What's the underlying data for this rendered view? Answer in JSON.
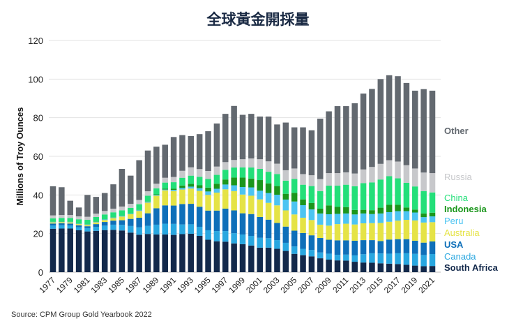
{
  "chart_data": {
    "type": "bar",
    "stacked": true,
    "title": "全球黃金開採量",
    "ylabel": "Millions of Troy Ounces",
    "xlabel": "",
    "ylim": [
      0,
      120
    ],
    "yticks": [
      0,
      20,
      40,
      60,
      80,
      100,
      120
    ],
    "grid": true,
    "legend": "right",
    "source": "Source: CPM Group Gold Yearbook 2022",
    "categories": [
      1977,
      1978,
      1979,
      1980,
      1981,
      1982,
      1983,
      1984,
      1985,
      1986,
      1987,
      1988,
      1989,
      1990,
      1991,
      1992,
      1993,
      1994,
      1995,
      1996,
      1997,
      1998,
      1999,
      2000,
      2001,
      2002,
      2003,
      2004,
      2005,
      2006,
      2007,
      2008,
      2009,
      2010,
      2011,
      2012,
      2013,
      2014,
      2015,
      2016,
      2017,
      2018,
      2019,
      2020,
      2021
    ],
    "xtick_labels": [
      "1977",
      "1979",
      "1981",
      "1983",
      "1985",
      "1987",
      "1989",
      "1991",
      "1993",
      "1995",
      "1997",
      "1999",
      "2001",
      "2003",
      "2005",
      "2007",
      "2009",
      "2011",
      "2013",
      "2015",
      "2017",
      "2019",
      "2021"
    ],
    "series": [
      {
        "name": "South Africa",
        "color": "#13294b",
        "values": [
          22.5,
          22.6,
          22.6,
          21.7,
          21.1,
          21.4,
          21.8,
          21.9,
          21.6,
          20.5,
          19.4,
          19.8,
          19.5,
          19.5,
          19.3,
          19.7,
          19.9,
          18.8,
          16.8,
          16.0,
          15.8,
          14.9,
          14.5,
          13.8,
          12.7,
          12.7,
          12.1,
          11.0,
          9.5,
          8.8,
          8.2,
          7.2,
          6.5,
          6.1,
          6.0,
          5.4,
          5.0,
          4.9,
          4.6,
          4.4,
          4.2,
          3.8,
          3.4,
          3.1,
          3.2
        ]
      },
      {
        "name": "Canada",
        "color": "#29a7e0",
        "values": [
          1.7,
          1.7,
          1.6,
          1.6,
          1.7,
          2.1,
          2.3,
          2.7,
          2.9,
          3.4,
          3.8,
          4.2,
          5.1,
          5.6,
          5.7,
          5.0,
          4.9,
          4.7,
          4.9,
          5.3,
          5.5,
          5.3,
          5.0,
          5.0,
          5.1,
          4.9,
          4.5,
          4.2,
          3.8,
          3.3,
          3.3,
          3.0,
          3.1,
          2.9,
          3.1,
          3.3,
          4.3,
          4.9,
          5.1,
          5.2,
          5.6,
          6.0,
          6.1,
          5.8,
          6.2
        ]
      },
      {
        "name": "USA",
        "color": "#0e6fb9",
        "values": [
          1.0,
          1.0,
          1.0,
          1.0,
          1.0,
          1.4,
          1.9,
          2.1,
          2.4,
          3.7,
          5.0,
          6.5,
          8.5,
          9.5,
          9.5,
          10.6,
          10.6,
          10.4,
          10.2,
          10.6,
          11.6,
          11.8,
          11.0,
          11.3,
          10.8,
          9.6,
          8.9,
          8.4,
          8.2,
          8.2,
          7.6,
          7.5,
          7.2,
          7.5,
          7.4,
          7.6,
          7.3,
          6.8,
          6.4,
          7.3,
          7.3,
          7.3,
          6.8,
          6.4,
          6.5
        ]
      },
      {
        "name": "Australia",
        "color": "#e5e346",
        "values": [
          0.6,
          0.6,
          0.6,
          0.6,
          0.6,
          0.9,
          1.0,
          1.3,
          1.9,
          2.4,
          3.5,
          5.5,
          6.5,
          7.8,
          7.5,
          7.5,
          7.9,
          8.2,
          8.1,
          9.3,
          10.0,
          10.0,
          9.7,
          9.5,
          9.1,
          8.7,
          9.1,
          8.4,
          8.4,
          7.9,
          7.9,
          6.9,
          7.3,
          8.4,
          8.6,
          8.4,
          8.7,
          8.8,
          9.4,
          9.2,
          9.6,
          10.0,
          10.5,
          10.4,
          10.0
        ]
      },
      {
        "name": "Peru",
        "color": "#4cc4f2",
        "values": [
          0.2,
          0.2,
          0.2,
          0.2,
          0.3,
          0.3,
          0.3,
          0.3,
          0.3,
          0.3,
          0.4,
          0.4,
          0.4,
          0.4,
          0.6,
          0.8,
          1.0,
          1.4,
          1.8,
          2.0,
          2.5,
          3.0,
          3.9,
          4.3,
          4.5,
          5.1,
          5.5,
          5.6,
          6.7,
          6.5,
          5.5,
          5.8,
          5.9,
          5.3,
          5.3,
          5.2,
          5.1,
          4.7,
          4.9,
          5.0,
          4.9,
          4.5,
          4.1,
          2.8,
          3.0
        ]
      },
      {
        "name": "Indonesia",
        "color": "#1b961c",
        "values": [
          0.1,
          0.1,
          0.1,
          0.1,
          0.1,
          0.1,
          0.1,
          0.1,
          0.1,
          0.1,
          0.1,
          0.2,
          0.3,
          0.4,
          0.6,
          1.3,
          1.4,
          1.5,
          2.0,
          2.6,
          2.6,
          4.0,
          4.9,
          4.6,
          5.5,
          5.0,
          4.5,
          3.0,
          4.5,
          3.0,
          3.3,
          2.5,
          4.6,
          3.6,
          3.3,
          2.3,
          1.9,
          2.0,
          3.0,
          3.8,
          3.3,
          1.9,
          1.5,
          1.9,
          1.9
        ]
      },
      {
        "name": "China",
        "color": "#23df79",
        "values": [
          1.8,
          1.9,
          2.0,
          2.2,
          2.3,
          2.4,
          2.5,
          2.6,
          2.8,
          2.9,
          3.0,
          3.0,
          3.1,
          3.2,
          3.4,
          4.0,
          4.3,
          4.4,
          4.5,
          4.6,
          5.0,
          5.2,
          5.3,
          5.7,
          5.8,
          6.0,
          6.2,
          6.8,
          7.2,
          7.6,
          8.8,
          9.1,
          10.2,
          11.0,
          11.6,
          12.3,
          13.8,
          14.4,
          14.6,
          14.8,
          13.7,
          12.8,
          12.0,
          11.6,
          10.5
        ]
      },
      {
        "name": "Russia",
        "color": "#c7c8cb",
        "values": [
          1.5,
          1.5,
          1.5,
          1.5,
          1.6,
          1.7,
          1.8,
          1.9,
          2.0,
          2.1,
          2.2,
          2.3,
          2.4,
          2.5,
          2.7,
          3.6,
          4.3,
          4.0,
          4.1,
          4.3,
          4.0,
          3.9,
          4.2,
          4.7,
          5.0,
          5.4,
          5.4,
          5.4,
          5.4,
          5.5,
          5.6,
          6.2,
          6.5,
          6.5,
          6.4,
          6.6,
          7.1,
          8.0,
          8.1,
          8.3,
          8.7,
          9.1,
          9.3,
          9.6,
          10.0
        ]
      },
      {
        "name": "Other",
        "color": "#636970",
        "values": [
          15.1,
          14.4,
          7.4,
          4.6,
          11.3,
          8.7,
          9.3,
          12.6,
          19.5,
          14.6,
          20.6,
          21.1,
          19.2,
          17.1,
          20.7,
          18.5,
          16.2,
          18.1,
          20.6,
          22.3,
          25.0,
          28.0,
          23.0,
          23.1,
          22.1,
          23.2,
          20.3,
          24.7,
          21.3,
          24.2,
          23.3,
          31.3,
          32.0,
          34.7,
          34.3,
          36.4,
          39.3,
          40.4,
          43.9,
          44.0,
          44.2,
          42.6,
          40.3,
          43.2,
          42.7
        ]
      }
    ]
  }
}
